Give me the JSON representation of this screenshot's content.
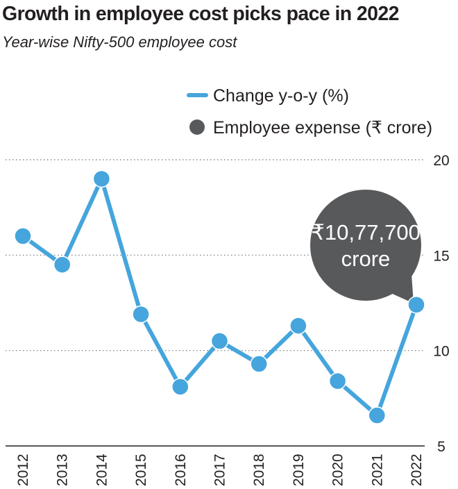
{
  "chart_data": {
    "type": "line",
    "title": "Growth in employee cost picks pace in 2022",
    "subtitle": "Year-wise Nifty-500 employee cost",
    "xlabel": "",
    "ylabel": "",
    "categories": [
      "2012",
      "2013",
      "2014",
      "2015",
      "2016",
      "2017",
      "2018",
      "2019",
      "2020",
      "2021",
      "2022"
    ],
    "series": [
      {
        "name": "Change y-o-y (%)",
        "values": [
          16.0,
          14.5,
          19.0,
          11.9,
          8.1,
          10.5,
          9.3,
          11.3,
          8.4,
          6.6,
          12.4
        ],
        "color": "#45a5dc"
      }
    ],
    "legend": [
      {
        "label": "Change y-o-y (%)",
        "marker": "line",
        "color": "#45a5dc"
      },
      {
        "label": "Employee expense (₹ crore)",
        "marker": "circle",
        "color": "#58595b"
      }
    ],
    "legend_position": "top-right",
    "ylim": [
      5,
      20
    ],
    "yticks": [
      "5",
      "10",
      "15",
      "20"
    ],
    "y_axis_side": "right",
    "grid": "horizontal-dotted",
    "annotation": {
      "category": "2022",
      "lines": [
        "₹10,77,700",
        "crore"
      ],
      "color": "#58595b"
    }
  }
}
